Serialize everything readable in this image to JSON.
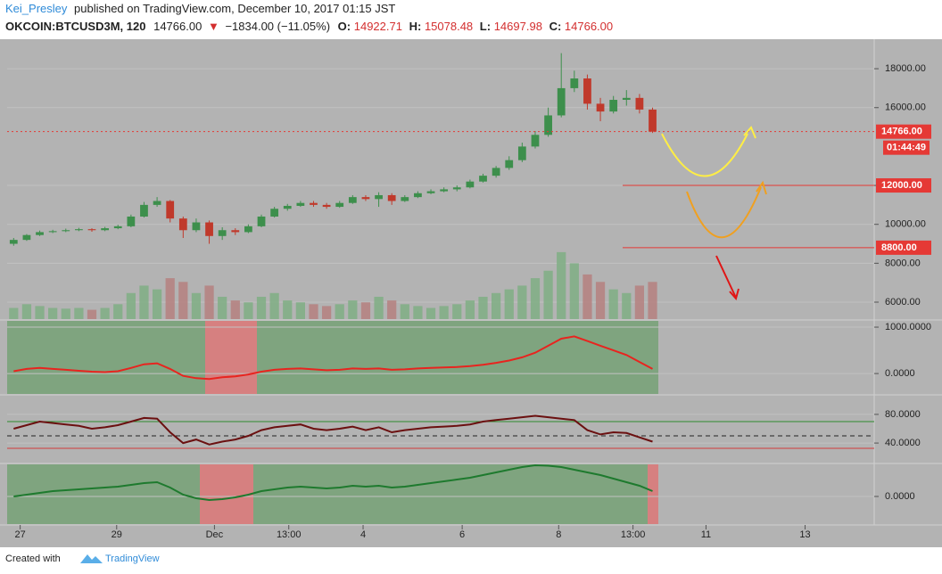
{
  "header": {
    "author": "Kei_Presley",
    "published": "published on TradingView.com, December 10, 2017 01:15 JST",
    "symbol": "OKCOIN:BTCUSD3M, 120",
    "last": "14766.00",
    "arrow": "▼",
    "change": "−1834.00 (−11.05%)",
    "open_label": "O:",
    "open": "14922.71",
    "high_label": "H:",
    "high": "15078.48",
    "low_label": "L:",
    "low": "14697.98",
    "close_label": "C:",
    "close": "14766.00"
  },
  "footer": {
    "created": "Created with",
    "brand": "TradingView"
  },
  "chart_data": [
    {
      "type": "candlestick",
      "up_color": "#3d8f4c",
      "down_color": "#c0392b",
      "volume_up_color": "#7fae84",
      "volume_down_color": "#b5807f",
      "xlim": [
        0,
        66.5
      ],
      "ylim": [
        5130,
        19470
      ],
      "volume_ylim": [
        0,
        7500
      ],
      "xticks": [
        {
          "value": 1,
          "label": "27"
        },
        {
          "value": 8.4,
          "label": "29"
        },
        {
          "value": 15.9,
          "label": "Dec"
        },
        {
          "value": 21.6,
          "label": "13:00"
        },
        {
          "value": 27.3,
          "label": "4"
        },
        {
          "value": 34.9,
          "label": "6"
        },
        {
          "value": 42.3,
          "label": "8"
        },
        {
          "value": 48,
          "label": "13:00"
        },
        {
          "value": 53.6,
          "label": "11"
        },
        {
          "value": 61.2,
          "label": "13"
        }
      ],
      "yticks": [
        {
          "value": 6000,
          "label": "6000.00"
        },
        {
          "value": 8000,
          "label": "8000.00"
        },
        {
          "value": 10000,
          "label": "10000.00"
        },
        {
          "value": 12000,
          "label": "12000.00"
        },
        {
          "value": 16000,
          "label": "16000.00"
        },
        {
          "value": 18000,
          "label": "18000.00"
        }
      ],
      "price_labels": [
        {
          "value": 14766,
          "label": "14766.00",
          "color": "#e53935"
        },
        {
          "value": 12000,
          "label": "12000.00",
          "color": "#e53935"
        },
        {
          "value": 8800,
          "label": "8800.00",
          "color": "#e53935"
        }
      ],
      "countdown": "01:44:49",
      "candles": [
        [
          9000,
          9300,
          8900,
          9200
        ],
        [
          9200,
          9500,
          9150,
          9450
        ],
        [
          9450,
          9680,
          9400,
          9600
        ],
        [
          9600,
          9720,
          9550,
          9650
        ],
        [
          9650,
          9780,
          9600,
          9700
        ],
        [
          9700,
          9820,
          9650,
          9750
        ],
        [
          9750,
          9800,
          9620,
          9700
        ],
        [
          9700,
          9870,
          9650,
          9800
        ],
        [
          9800,
          9980,
          9750,
          9900
        ],
        [
          9900,
          10500,
          9850,
          10400
        ],
        [
          10400,
          11150,
          10350,
          11000
        ],
        [
          11000,
          11400,
          10900,
          11200
        ],
        [
          11200,
          11250,
          10100,
          10300
        ],
        [
          10300,
          10400,
          9300,
          9700
        ],
        [
          9700,
          10300,
          9600,
          10100
        ],
        [
          10100,
          10200,
          9000,
          9400
        ],
        [
          9400,
          9850,
          9200,
          9700
        ],
        [
          9700,
          9800,
          9450,
          9600
        ],
        [
          9600,
          10000,
          9550,
          9900
        ],
        [
          9900,
          10500,
          9850,
          10400
        ],
        [
          10400,
          10900,
          10350,
          10800
        ],
        [
          10800,
          11050,
          10700,
          10950
        ],
        [
          10950,
          11200,
          10900,
          11100
        ],
        [
          11100,
          11200,
          10900,
          11000
        ],
        [
          11000,
          11100,
          10800,
          10900
        ],
        [
          10900,
          11200,
          10850,
          11100
        ],
        [
          11100,
          11500,
          11050,
          11400
        ],
        [
          11400,
          11500,
          11200,
          11300
        ],
        [
          11300,
          11650,
          10900,
          11500
        ],
        [
          11500,
          11600,
          11000,
          11200
        ],
        [
          11200,
          11500,
          11150,
          11400
        ],
        [
          11400,
          11700,
          11350,
          11600
        ],
        [
          11600,
          11800,
          11550,
          11700
        ],
        [
          11700,
          11900,
          11650,
          11800
        ],
        [
          11800,
          12000,
          11700,
          11900
        ],
        [
          11900,
          12300,
          11850,
          12200
        ],
        [
          12200,
          12600,
          12150,
          12500
        ],
        [
          12500,
          13000,
          12400,
          12900
        ],
        [
          12900,
          13500,
          12800,
          13300
        ],
        [
          13300,
          14200,
          13200,
          14000
        ],
        [
          14000,
          14800,
          13900,
          14600
        ],
        [
          14600,
          16000,
          14500,
          15600
        ],
        [
          15600,
          18800,
          15500,
          17000
        ],
        [
          17000,
          17900,
          16800,
          17500
        ],
        [
          17500,
          17700,
          15900,
          16200
        ],
        [
          16200,
          16500,
          15300,
          15800
        ],
        [
          15800,
          16600,
          15700,
          16400
        ],
        [
          16400,
          16900,
          16100,
          16500
        ],
        [
          16500,
          16700,
          15700,
          15900
        ],
        [
          15900,
          16000,
          14698,
          14766
        ]
      ],
      "volume": [
        300,
        400,
        350,
        300,
        280,
        300,
        250,
        300,
        400,
        700,
        900,
        800,
        1100,
        1000,
        700,
        900,
        600,
        500,
        450,
        600,
        700,
        500,
        450,
        400,
        350,
        400,
        500,
        450,
        600,
        500,
        400,
        350,
        300,
        350,
        400,
        500,
        600,
        700,
        800,
        900,
        1100,
        1300,
        1800,
        1500,
        1200,
        1000,
        800,
        700,
        900,
        1000
      ]
    },
    {
      "type": "line",
      "color": "#e8241f",
      "xlim": [
        0,
        66.5
      ],
      "ylim": [
        -440,
        1135
      ],
      "yticks": [
        {
          "value": 1000,
          "label": "1000.0000"
        },
        {
          "value": 0,
          "label": "0.0000"
        }
      ],
      "values": [
        50,
        100,
        120,
        100,
        80,
        60,
        40,
        30,
        50,
        120,
        200,
        220,
        100,
        -50,
        -100,
        -120,
        -80,
        -60,
        -20,
        40,
        80,
        100,
        110,
        90,
        70,
        80,
        110,
        100,
        110,
        80,
        90,
        110,
        120,
        130,
        140,
        160,
        190,
        230,
        280,
        350,
        450,
        600,
        750,
        800,
        700,
        600,
        500,
        400,
        250,
        100
      ]
    },
    {
      "type": "line",
      "color": "#6b1010",
      "xlim": [
        0,
        66.5
      ],
      "ylim": [
        14,
        106
      ],
      "yticks": [
        {
          "value": 80,
          "label": "80.0000"
        },
        {
          "value": 40,
          "label": "40.0000"
        }
      ],
      "values": [
        60,
        65,
        70,
        68,
        66,
        64,
        60,
        62,
        65,
        70,
        75,
        74,
        55,
        40,
        45,
        38,
        42,
        45,
        50,
        58,
        62,
        64,
        66,
        60,
        58,
        60,
        63,
        58,
        62,
        55,
        58,
        60,
        62,
        63,
        64,
        66,
        70,
        72,
        74,
        76,
        78,
        76,
        74,
        72,
        58,
        52,
        55,
        54,
        48,
        42
      ]
    },
    {
      "type": "line",
      "color": "#1e7a2e",
      "xlim": [
        0,
        66.5
      ],
      "ylim": [
        -310,
        360
      ],
      "yticks": [
        {
          "value": 0,
          "label": "0.0000"
        }
      ],
      "values": [
        0,
        20,
        40,
        60,
        70,
        80,
        90,
        100,
        110,
        130,
        150,
        160,
        100,
        20,
        -20,
        -40,
        -30,
        -10,
        20,
        60,
        80,
        100,
        110,
        100,
        90,
        100,
        120,
        110,
        120,
        100,
        110,
        130,
        150,
        170,
        190,
        210,
        240,
        270,
        300,
        330,
        350,
        345,
        330,
        300,
        270,
        240,
        200,
        160,
        120,
        60
      ]
    }
  ]
}
